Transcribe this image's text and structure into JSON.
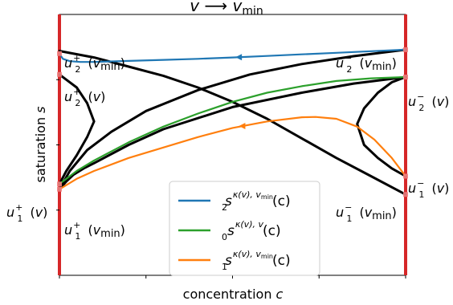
{
  "chart_data": {
    "type": "line",
    "title": "v → v_min",
    "xlabel": "concentration c",
    "ylabel": "saturation s",
    "grid": false,
    "legend_position": "lower-center",
    "colors": {
      "blue": "#1f77b4",
      "green": "#2ca02c",
      "orange": "#ff7f0e",
      "black": "#000000",
      "boundary": "#d62728"
    },
    "series": [
      {
        "name": "s_2^{κ(v), v_min}(c)",
        "color": "#1f77b4",
        "x": [
          0.0,
          0.01,
          0.03,
          0.06,
          0.1,
          0.2,
          0.3,
          0.4,
          0.5,
          0.6,
          0.7,
          0.8,
          0.9,
          1.0
        ],
        "y": [
          0.85,
          0.83,
          0.821,
          0.818,
          0.818,
          0.822,
          0.826,
          0.83,
          0.835,
          0.841,
          0.847,
          0.853,
          0.859,
          0.865
        ]
      },
      {
        "name": "s_0^{κ(v), v}(c)",
        "color": "#2ca02c",
        "x": [
          0.0,
          0.05,
          0.1,
          0.2,
          0.3,
          0.4,
          0.5,
          0.6,
          0.7,
          0.8,
          0.9,
          1.0
        ],
        "y": [
          0.35,
          0.4,
          0.44,
          0.51,
          0.57,
          0.62,
          0.665,
          0.7,
          0.725,
          0.745,
          0.755,
          0.76
        ]
      },
      {
        "name": "s_1^{κ(v), v_min}(c)",
        "color": "#ff7f0e",
        "x": [
          0.0,
          0.05,
          0.1,
          0.2,
          0.3,
          0.4,
          0.5,
          0.6,
          0.7,
          0.74,
          0.8,
          0.86,
          0.91,
          0.96,
          1.0
        ],
        "y": [
          0.33,
          0.37,
          0.4,
          0.45,
          0.49,
          0.53,
          0.565,
          0.59,
          0.606,
          0.607,
          0.6,
          0.57,
          0.52,
          0.45,
          0.38
        ]
      }
    ],
    "black_curves": [
      {
        "x": [
          0.0,
          0.1,
          0.2,
          0.3,
          0.4,
          0.5,
          0.6,
          0.7,
          0.8,
          0.9,
          1.0
        ],
        "y": [
          0.86,
          0.835,
          0.8,
          0.765,
          0.72,
          0.665,
          0.6,
          0.525,
          0.45,
          0.38,
          0.31
        ]
      },
      {
        "x": [
          0.0,
          0.03,
          0.08,
          0.15,
          0.25,
          0.4,
          0.55,
          0.7,
          0.85,
          1.0
        ],
        "y": [
          0.33,
          0.4,
          0.48,
          0.55,
          0.63,
          0.71,
          0.77,
          0.81,
          0.84,
          0.865
        ]
      },
      {
        "x": [
          0.0,
          0.02,
          0.04,
          0.07,
          0.1,
          0.2,
          0.3,
          0.5,
          0.7,
          0.85,
          1.0
        ],
        "y": [
          0.33,
          0.36,
          0.385,
          0.41,
          0.43,
          0.5,
          0.56,
          0.645,
          0.7,
          0.735,
          0.76
        ]
      },
      {
        "x": [
          0.0,
          0.02,
          0.05,
          0.08,
          0.1,
          0.08,
          0.05,
          0.02,
          0.0
        ],
        "y": [
          0.35,
          0.4,
          0.46,
          0.53,
          0.59,
          0.66,
          0.72,
          0.75,
          0.77
        ]
      },
      {
        "x": [
          1.0,
          0.96,
          0.92,
          0.88,
          0.86,
          0.88,
          0.92,
          0.96,
          1.0
        ],
        "y": [
          0.76,
          0.74,
          0.7,
          0.64,
          0.58,
          0.5,
          0.45,
          0.41,
          0.38
        ]
      }
    ],
    "arrows": [
      {
        "series": 0,
        "x": 0.52
      },
      {
        "series": 2,
        "x": 0.53
      }
    ],
    "annotations": {
      "u2p_vmin": {
        "base": "u",
        "sub": "2",
        "sup": "+",
        "arg": "(v",
        "argsub": "min",
        "close": ")"
      },
      "u2p_v": {
        "base": "u",
        "sub": "2",
        "sup": "+",
        "arg": "(v)"
      },
      "u1p_v": {
        "base": "u",
        "sub": "1",
        "sup": "+",
        "arg": "(v)"
      },
      "u1p_vmin": {
        "base": "u",
        "sub": "1",
        "sup": "+",
        "arg": "(v",
        "argsub": "min",
        "close": ")"
      },
      "u2m_vmin": {
        "base": "u",
        "sub": "2",
        "sup": "−",
        "arg": "(v",
        "argsub": "min",
        "close": ")"
      },
      "u2m_v": {
        "base": "u",
        "sub": "2",
        "sup": "−",
        "arg": "(v)"
      },
      "u1m_v": {
        "base": "u",
        "sub": "1",
        "sup": "−",
        "arg": "(v)"
      },
      "u1m_vmin": {
        "base": "u",
        "sub": "1",
        "sup": "−",
        "arg": "(v",
        "argsub": "min",
        "close": ")"
      }
    },
    "legend": [
      {
        "base": "s",
        "sub": "2",
        "sup": "κ(v), v",
        "supsub": "min",
        "arg": "(c)"
      },
      {
        "base": "s",
        "sub": "0",
        "sup": "κ(v), v",
        "arg": "(c)"
      },
      {
        "base": "s",
        "sub": "1",
        "sup": "κ(v), v",
        "supsub": "min",
        "arg": "(c)"
      }
    ],
    "title_parts": {
      "left": "v",
      "arrow": "⟶",
      "right": "v",
      "rightsub": "min"
    }
  }
}
